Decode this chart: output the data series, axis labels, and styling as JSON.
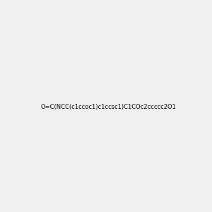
{
  "smiles": "O=C(NCC(c1ccoc1)c1ccsc1)C1COc2ccccc2O1",
  "image_size": 300,
  "background_color": "#f0f0f0"
}
